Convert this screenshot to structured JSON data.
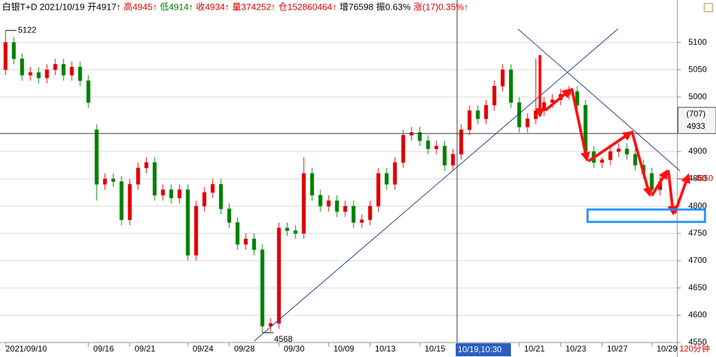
{
  "header": [
    {
      "text": "白银T+D 2021/10/19",
      "color": "#000000"
    },
    {
      "text": "开4917↑",
      "color": "#000000"
    },
    {
      "text": "高4945↑",
      "color": "#e00000"
    },
    {
      "text": "低4914↑",
      "color": "#008000"
    },
    {
      "text": "收4934↑",
      "color": "#e00000"
    },
    {
      "text": "量374252↑",
      "color": "#e00000"
    },
    {
      "text": "仓152860464↑",
      "color": "#e00000"
    },
    {
      "text": "增76598",
      "color": "#000000"
    },
    {
      "text": "振0.63%",
      "color": "#000000"
    },
    {
      "text": "涨(17)0.35%↑",
      "color": "#e00000"
    }
  ],
  "chart_data": {
    "type": "candlestick",
    "up_color": "#e00000",
    "down_color": "#008000",
    "grid": true,
    "ylim": [
      4550,
      5150
    ],
    "yticks": [
      4550,
      4600,
      4650,
      4700,
      4750,
      4800,
      4850,
      4900,
      5000,
      5050,
      5100
    ],
    "xlim": [
      0,
      80
    ],
    "xticks": [
      {
        "value": 0,
        "label": "2021/09/10"
      },
      {
        "value": 10,
        "label": "09/16"
      },
      {
        "value": 15,
        "label": "09/21"
      },
      {
        "value": 22,
        "label": "09/24"
      },
      {
        "value": 27,
        "label": "09/28"
      },
      {
        "value": 33,
        "label": "09/30"
      },
      {
        "value": 39,
        "label": "10/09"
      },
      {
        "value": 44,
        "label": "10/13"
      },
      {
        "value": 50,
        "label": "10/15"
      },
      {
        "value": 62,
        "label": "10/21"
      },
      {
        "value": 67,
        "label": "10/23"
      },
      {
        "value": 72,
        "label": "10/27"
      },
      {
        "value": 78,
        "label": "10/29"
      }
    ],
    "open": [
      5050,
      5100,
      5070,
      5040,
      5045,
      5035,
      5050,
      5060,
      5040,
      5055,
      5030,
      4940,
      4840,
      4850,
      4845,
      4775,
      4840,
      4870,
      4880,
      4820,
      4830,
      4815,
      4830,
      4710,
      4800,
      4825,
      4840,
      4795,
      4770,
      4730,
      4740,
      4720,
      4580,
      4585,
      4760,
      4755,
      4750,
      4860,
      4820,
      4800,
      4810,
      4790,
      4800,
      4770,
      4775,
      4800,
      4860,
      4840,
      4880,
      4930,
      4935,
      4920,
      4905,
      4910,
      4875,
      4895,
      4940,
      4975,
      4960,
      4985,
      5020,
      5050,
      4990,
      4945,
      4960,
      4975,
      4990,
      4995,
      5005,
      5010,
      4985,
      4900,
      4880,
      4885,
      4900,
      4905,
      4895,
      4875,
      4860,
      4830
    ],
    "high": [
      5122,
      5110,
      5080,
      5055,
      5055,
      5060,
      5070,
      5070,
      5065,
      5065,
      5040,
      4950,
      4860,
      4860,
      4855,
      4850,
      4880,
      4890,
      4890,
      4840,
      4840,
      4840,
      4840,
      4810,
      4835,
      4850,
      4850,
      4805,
      4780,
      4750,
      4750,
      4730,
      4595,
      4770,
      4770,
      4765,
      4890,
      4870,
      4830,
      4820,
      4820,
      4810,
      4810,
      4785,
      4810,
      4870,
      4870,
      4890,
      4940,
      4945,
      4945,
      4930,
      4920,
      4920,
      4905,
      4950,
      4985,
      4985,
      4995,
      5030,
      5060,
      5060,
      5000,
      4970,
      5070,
      5000,
      5005,
      5015,
      5020,
      5020,
      4995,
      4910,
      4890,
      4910,
      4915,
      4915,
      4905,
      4885,
      4870,
      4855
    ],
    "low": [
      5040,
      5060,
      5030,
      5030,
      5025,
      5025,
      5040,
      5030,
      5030,
      5020,
      4980,
      4810,
      4830,
      4835,
      4765,
      4765,
      4830,
      4860,
      4810,
      4810,
      4805,
      4805,
      4700,
      4700,
      4790,
      4815,
      4785,
      4760,
      4720,
      4720,
      4710,
      4568,
      4570,
      4575,
      4745,
      4740,
      4740,
      4810,
      4790,
      4790,
      4780,
      4780,
      4760,
      4760,
      4765,
      4790,
      4830,
      4830,
      4870,
      4920,
      4910,
      4895,
      4895,
      4865,
      4865,
      4885,
      4930,
      4950,
      4950,
      4975,
      5010,
      4980,
      4935,
      4935,
      4950,
      4965,
      4980,
      4985,
      4995,
      4975,
      4890,
      4870,
      4870,
      4875,
      4890,
      4885,
      4865,
      4850,
      4820,
      4820
    ],
    "close": [
      5100,
      5070,
      5040,
      5045,
      5035,
      5050,
      5060,
      5040,
      5055,
      5030,
      4990,
      4840,
      4850,
      4845,
      4775,
      4840,
      4870,
      4880,
      4820,
      4830,
      4815,
      4830,
      4710,
      4800,
      4825,
      4840,
      4795,
      4770,
      4730,
      4740,
      4720,
      4580,
      4585,
      4760,
      4755,
      4750,
      4860,
      4820,
      4800,
      4810,
      4790,
      4800,
      4770,
      4775,
      4800,
      4860,
      4840,
      4880,
      4930,
      4935,
      4920,
      4905,
      4910,
      4875,
      4895,
      4940,
      4975,
      4960,
      4985,
      5020,
      5050,
      4990,
      4945,
      4960,
      4975,
      4990,
      4995,
      5005,
      5010,
      4985,
      4900,
      4880,
      4885,
      4900,
      4905,
      4895,
      4875,
      4860,
      4830,
      4845
    ],
    "cursor": {
      "index": 54.5,
      "value": 4933,
      "label": "10/19,10:30",
      "tag": "(707)"
    },
    "marker_label": 4850,
    "period": "120分钟"
  }
}
